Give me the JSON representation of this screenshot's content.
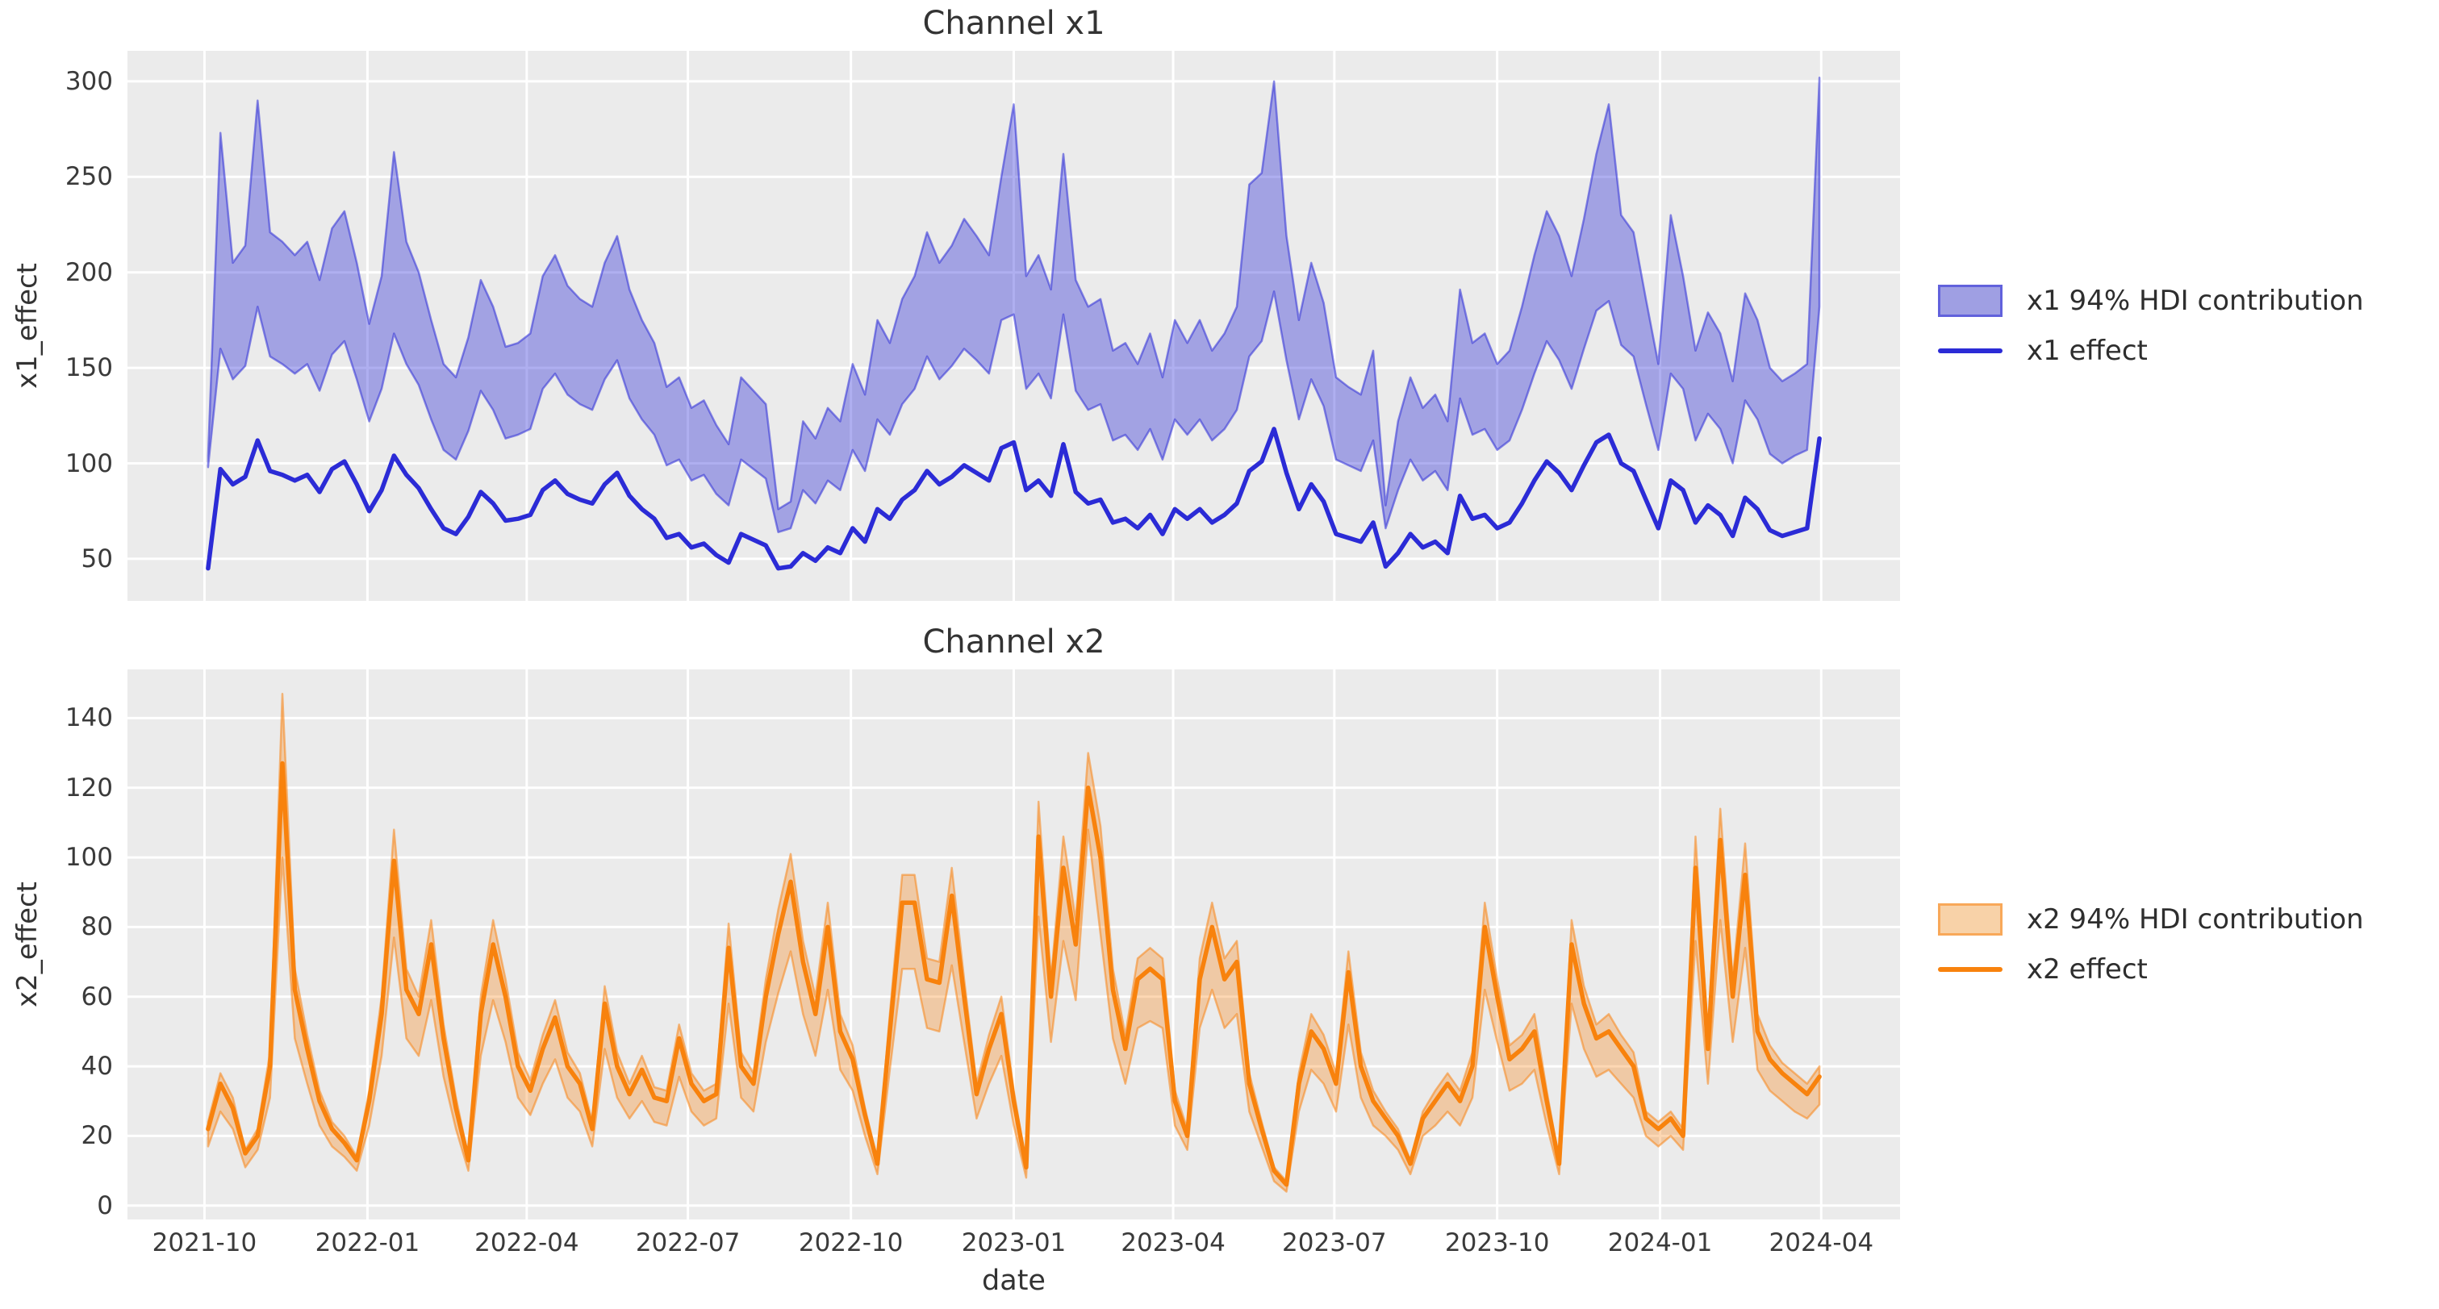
{
  "figure": {
    "background": "#ffffff",
    "plot_background": "#ebebeb",
    "grid_color": "#ffffff",
    "text_color": "#333333",
    "xlabel": "date"
  },
  "chart_data": [
    {
      "type": "line",
      "title": "Channel x1",
      "ylabel": "x1_effect",
      "legend": [
        "x1 94% HDI contribution",
        "x1 effect"
      ],
      "legend_position": "center right, outside axes",
      "grid": true,
      "line_color": "#2b2bd6",
      "band_fill": "rgba(45,45,215,0.38)",
      "band_edge": "rgba(45,45,215,0.55)",
      "band_fill_hex": "#9f9fe3",
      "ylim": [
        28,
        316
      ],
      "yticks": [
        50,
        100,
        150,
        200,
        250,
        300
      ],
      "xlim": [
        -6.5,
        136.5
      ],
      "xticks": {
        "positions": [
          -0.29,
          12.86,
          25.71,
          38.71,
          51.86,
          65.0,
          77.86,
          90.86,
          104.0,
          117.14,
          130.14
        ],
        "labels": [
          "2021-10",
          "2022-01",
          "2022-04",
          "2022-07",
          "2022-10",
          "2023-01",
          "2023-04",
          "2023-07",
          "2023-10",
          "2024-01",
          "2024-04"
        ]
      },
      "x_frequency": "weekly index, 131 points",
      "series": [
        {
          "name": "x1 effect",
          "values": [
            45,
            97,
            89,
            93,
            112,
            96,
            94,
            91,
            94,
            85,
            97,
            101,
            89,
            75,
            86,
            104,
            94,
            87,
            76,
            66,
            63,
            72,
            85,
            79,
            70,
            71,
            73,
            86,
            91,
            84,
            81,
            79,
            89,
            95,
            83,
            76,
            71,
            61,
            63,
            56,
            58,
            52,
            48,
            63,
            60,
            57,
            45,
            46,
            53,
            49,
            56,
            53,
            66,
            59,
            76,
            71,
            81,
            86,
            96,
            89,
            93,
            99,
            95,
            91,
            108,
            111,
            86,
            91,
            83,
            110,
            85,
            79,
            81,
            69,
            71,
            66,
            73,
            63,
            76,
            71,
            76,
            69,
            73,
            79,
            96,
            101,
            118,
            95,
            76,
            89,
            80,
            63,
            61,
            59,
            69,
            46,
            53,
            63,
            56,
            59,
            53,
            83,
            71,
            73,
            66,
            69,
            79,
            91,
            101,
            95,
            86,
            99,
            111,
            115,
            100,
            96,
            81,
            66,
            91,
            86,
            69,
            78,
            73,
            62,
            82,
            76,
            65,
            62,
            64,
            66,
            113
          ]
        }
      ],
      "band": {
        "name": "x1 94% HDI contribution",
        "lower": [
          98,
          160,
          144,
          151,
          182,
          156,
          152,
          147,
          152,
          138,
          157,
          164,
          144,
          122,
          139,
          168,
          152,
          141,
          123,
          107,
          102,
          117,
          138,
          128,
          113,
          115,
          118,
          139,
          147,
          136,
          131,
          128,
          144,
          154,
          134,
          123,
          115,
          99,
          102,
          91,
          94,
          84,
          78,
          102,
          97,
          92,
          64,
          66,
          86,
          79,
          91,
          86,
          107,
          96,
          123,
          115,
          131,
          139,
          156,
          144,
          151,
          160,
          154,
          147,
          175,
          178,
          139,
          147,
          134,
          178,
          138,
          128,
          131,
          112,
          115,
          107,
          118,
          102,
          123,
          115,
          123,
          112,
          118,
          128,
          156,
          164,
          190,
          154,
          123,
          144,
          130,
          102,
          99,
          96,
          112,
          66,
          86,
          102,
          91,
          96,
          86,
          134,
          115,
          118,
          107,
          112,
          128,
          147,
          164,
          154,
          139,
          160,
          180,
          185,
          162,
          156,
          131,
          107,
          147,
          139,
          112,
          126,
          118,
          100,
          133,
          123,
          105,
          100,
          104,
          107,
          182
        ],
        "upper": [
          104,
          273,
          205,
          214,
          290,
          221,
          216,
          209,
          216,
          196,
          223,
          232,
          205,
          173,
          198,
          263,
          216,
          200,
          175,
          152,
          145,
          166,
          196,
          182,
          161,
          163,
          168,
          198,
          209,
          193,
          186,
          182,
          205,
          219,
          191,
          175,
          163,
          140,
          145,
          129,
          133,
          120,
          110,
          145,
          138,
          131,
          76,
          80,
          122,
          113,
          129,
          122,
          152,
          136,
          175,
          163,
          186,
          198,
          221,
          205,
          214,
          228,
          219,
          209,
          250,
          288,
          198,
          209,
          191,
          262,
          196,
          182,
          186,
          159,
          163,
          152,
          168,
          145,
          175,
          163,
          175,
          159,
          168,
          182,
          246,
          252,
          300,
          219,
          175,
          205,
          184,
          145,
          140,
          136,
          159,
          78,
          122,
          145,
          129,
          136,
          122,
          191,
          163,
          168,
          152,
          159,
          182,
          209,
          232,
          219,
          198,
          228,
          262,
          288,
          230,
          221,
          186,
          152,
          230,
          198,
          159,
          179,
          168,
          143,
          189,
          175,
          150,
          143,
          147,
          152,
          302
        ]
      }
    },
    {
      "type": "line",
      "title": "Channel x2",
      "ylabel": "x2_effect",
      "xlabel": "date",
      "legend": [
        "x2 94% HDI contribution",
        "x2 effect"
      ],
      "legend_position": "center right, outside axes",
      "grid": true,
      "line_color": "#f8820d",
      "band_fill": "rgba(248,133,24,0.33)",
      "band_edge": "rgba(248,133,24,0.55)",
      "band_fill_hex": "#f8d2a8",
      "ylim": [
        -4,
        154
      ],
      "yticks": [
        0,
        20,
        40,
        60,
        80,
        100,
        120,
        140
      ],
      "xlim": [
        -6.5,
        136.5
      ],
      "xticks": {
        "positions": [
          -0.29,
          12.86,
          25.71,
          38.71,
          51.86,
          65.0,
          77.86,
          90.86,
          104.0,
          117.14,
          130.14
        ],
        "labels": [
          "2021-10",
          "2022-01",
          "2022-04",
          "2022-07",
          "2022-10",
          "2023-01",
          "2023-04",
          "2023-07",
          "2023-10",
          "2024-01",
          "2024-04"
        ]
      },
      "x_frequency": "weekly index, 131 points",
      "series": [
        {
          "name": "x2 effect",
          "values": [
            22,
            35,
            28,
            15,
            20,
            40,
            127,
            62,
            45,
            30,
            22,
            18,
            13,
            30,
            55,
            99,
            62,
            55,
            75,
            48,
            28,
            13,
            55,
            75,
            60,
            40,
            33,
            45,
            54,
            40,
            35,
            22,
            58,
            40,
            32,
            39,
            31,
            30,
            48,
            35,
            30,
            32,
            74,
            40,
            35,
            60,
            78,
            93,
            70,
            55,
            80,
            50,
            42,
            26,
            12,
            50,
            87,
            87,
            65,
            64,
            89,
            60,
            32,
            45,
            55,
            30,
            11,
            106,
            60,
            97,
            75,
            120,
            100,
            62,
            45,
            65,
            68,
            65,
            30,
            20,
            65,
            80,
            65,
            70,
            35,
            22,
            10,
            6,
            35,
            50,
            45,
            35,
            67,
            40,
            30,
            25,
            20,
            12,
            25,
            30,
            35,
            30,
            40,
            80,
            60,
            42,
            45,
            50,
            30,
            12,
            75,
            58,
            48,
            50,
            45,
            40,
            25,
            22,
            25,
            20,
            97,
            45,
            105,
            60,
            95,
            50,
            42,
            38,
            35,
            32,
            37
          ]
        }
      ],
      "band": {
        "name": "x2 94% HDI contribution",
        "lower": [
          17,
          27,
          22,
          11,
          16,
          31,
          100,
          48,
          35,
          23,
          17,
          14,
          10,
          23,
          43,
          77,
          48,
          43,
          59,
          37,
          22,
          10,
          43,
          59,
          47,
          31,
          26,
          35,
          42,
          31,
          27,
          17,
          45,
          31,
          25,
          30,
          24,
          23,
          37,
          27,
          23,
          25,
          58,
          31,
          27,
          47,
          61,
          73,
          55,
          43,
          62,
          39,
          33,
          20,
          9,
          39,
          68,
          68,
          51,
          50,
          69,
          47,
          25,
          35,
          43,
          23,
          8,
          83,
          47,
          76,
          59,
          108,
          78,
          48,
          35,
          51,
          53,
          51,
          23,
          16,
          51,
          62,
          51,
          55,
          27,
          17,
          7,
          4,
          27,
          39,
          35,
          27,
          52,
          31,
          23,
          20,
          16,
          9,
          20,
          23,
          27,
          23,
          31,
          62,
          47,
          33,
          35,
          39,
          23,
          9,
          58,
          45,
          37,
          39,
          35,
          31,
          20,
          17,
          20,
          16,
          76,
          35,
          82,
          47,
          74,
          39,
          33,
          30,
          27,
          25,
          29
        ],
        "upper": [
          24,
          38,
          31,
          16,
          22,
          44,
          147,
          68,
          49,
          33,
          24,
          20,
          14,
          33,
          60,
          108,
          68,
          60,
          82,
          52,
          31,
          14,
          60,
          82,
          65,
          44,
          36,
          49,
          59,
          44,
          38,
          24,
          63,
          44,
          35,
          43,
          34,
          33,
          52,
          38,
          33,
          35,
          81,
          44,
          38,
          65,
          85,
          101,
          76,
          60,
          87,
          55,
          46,
          28,
          13,
          55,
          95,
          95,
          71,
          70,
          97,
          65,
          35,
          49,
          60,
          33,
          12,
          116,
          65,
          106,
          82,
          130,
          109,
          68,
          49,
          71,
          74,
          71,
          33,
          22,
          71,
          87,
          71,
          76,
          38,
          24,
          11,
          7,
          38,
          55,
          49,
          38,
          73,
          44,
          33,
          27,
          22,
          13,
          27,
          33,
          38,
          33,
          44,
          87,
          65,
          46,
          49,
          55,
          33,
          13,
          82,
          63,
          52,
          55,
          49,
          44,
          27,
          24,
          27,
          22,
          106,
          49,
          114,
          65,
          104,
          55,
          46,
          41,
          38,
          35,
          40
        ]
      }
    }
  ]
}
